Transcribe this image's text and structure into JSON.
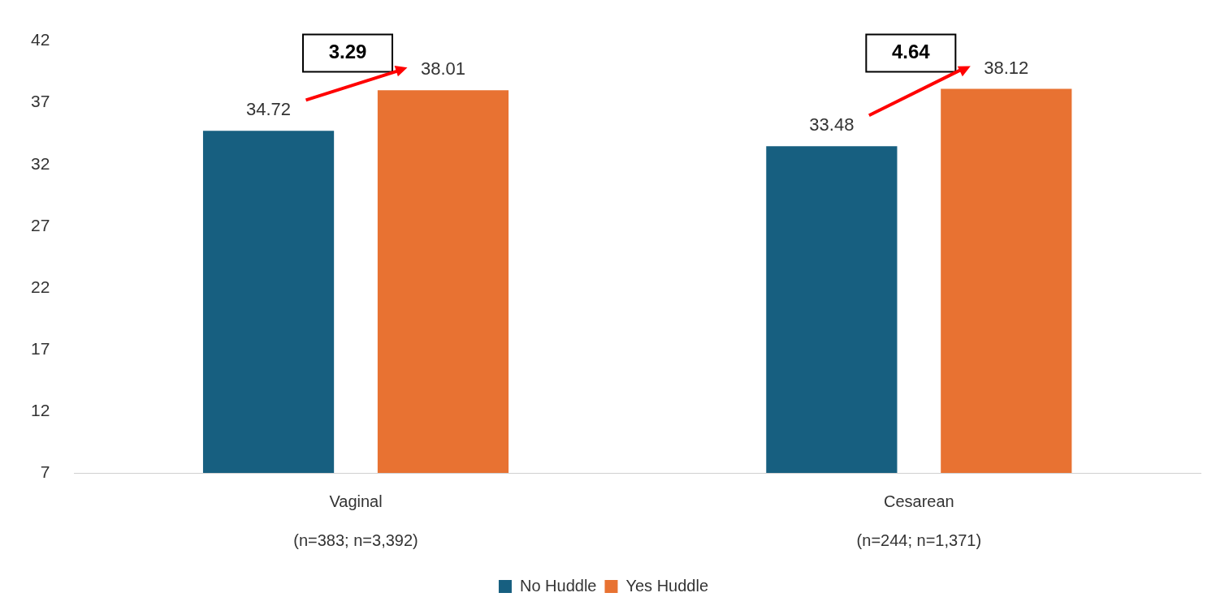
{
  "chart_data": {
    "type": "bar",
    "categories": [
      "Vaginal\n(n=383; n=3,392)",
      "Cesarean\n(n=244; n=1,371)"
    ],
    "series": [
      {
        "name": "No Huddle",
        "color": "#175f80",
        "values": [
          34.72,
          33.48
        ]
      },
      {
        "name": "Yes Huddle",
        "color": "#e87232",
        "values": [
          38.01,
          38.12
        ]
      }
    ],
    "ylim": [
      7,
      42
    ],
    "yticks": [
      7,
      12,
      17,
      22,
      27,
      32,
      37,
      42
    ],
    "grid": false,
    "legend": "bottom",
    "data_labels": true,
    "annotations": [
      "3.29",
      "4.64"
    ]
  }
}
